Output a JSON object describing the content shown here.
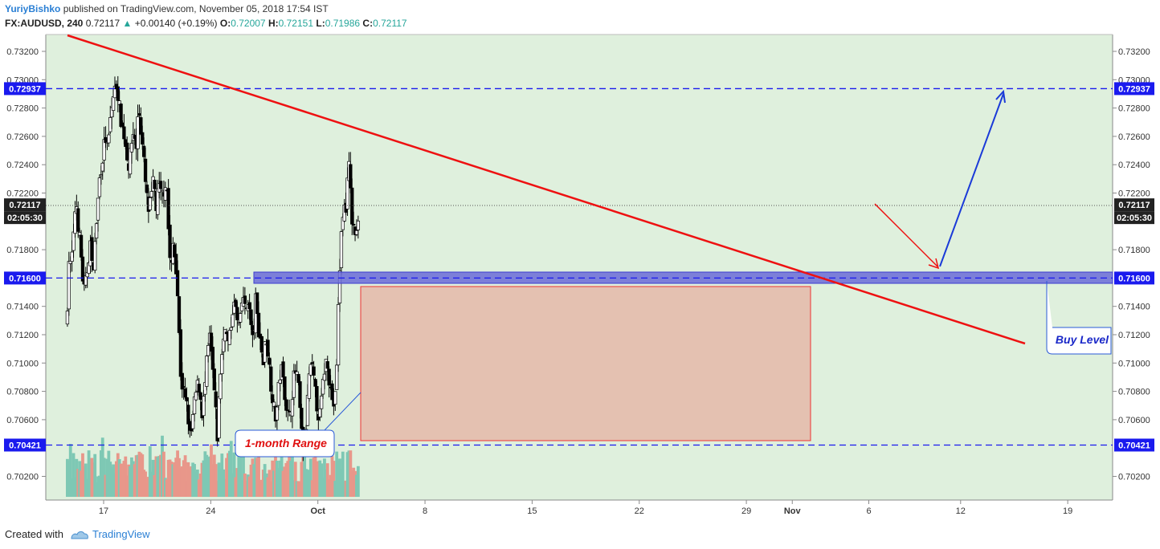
{
  "header": {
    "author": "YuriyBishko",
    "published": "published on TradingView.com, November 05, 2018 17:54 IST",
    "symbol": "FX:AUDUSD, 240",
    "last": "0.72117",
    "change_arrow": "▲",
    "change": "+0.00140 (+0.19%)",
    "o_label": "O:",
    "o_val": "0.72007",
    "h_label": "H:",
    "h_val": "0.72151",
    "l_label": "L:",
    "l_val": "0.71986",
    "c_label": "C:",
    "c_val": "0.72117"
  },
  "footer": {
    "created_with": "Created with",
    "brand": "TradingView"
  },
  "colors": {
    "background": "#dff0dd",
    "up_candle": "#ffffff",
    "down_candle": "#000000",
    "trendline": "#ee1111",
    "level_line": "#1a1aee",
    "buy_zone": "#6b6bd8",
    "range_fill": "#e5b9a9",
    "range_border": "#ee3333",
    "vol_up": "#7ec8b4",
    "vol_down": "#e8978a"
  },
  "chart_data": {
    "type": "candlestick",
    "symbol": "FX:AUDUSD",
    "interval": "240",
    "ylim": [
      0.7005,
      0.7328
    ],
    "y_ticks": [
      "0.73200",
      "0.73000",
      "0.72800",
      "0.72600",
      "0.72400",
      "0.72200",
      "0.71800",
      "0.71400",
      "0.71200",
      "0.71000",
      "0.70800",
      "0.70600",
      "0.70200"
    ],
    "x_ticks": [
      "17",
      "24",
      "Oct",
      "8",
      "15",
      "22",
      "29",
      "Nov",
      "6",
      "12",
      "19"
    ],
    "x_tick_day": [
      17,
      24,
      31,
      38,
      45,
      52,
      59,
      62,
      67,
      73,
      80
    ],
    "current_price": "0.72117",
    "countdown": "02:05:30",
    "levels": [
      {
        "label": "0.72937",
        "value": 0.72937
      },
      {
        "label": "0.71600",
        "value": 0.716
      },
      {
        "label": "0.70421",
        "value": 0.70421
      }
    ],
    "close_path": [
      [
        10.0,
        0.7125
      ],
      [
        10.6,
        0.7175
      ],
      [
        11.5,
        0.7168
      ],
      [
        12.5,
        0.7185
      ],
      [
        13.5,
        0.7218
      ],
      [
        14.5,
        0.7195
      ],
      [
        15.3,
        0.7184
      ],
      [
        16.0,
        0.7162
      ],
      [
        16.8,
        0.7152
      ],
      [
        17.5,
        0.7158
      ],
      [
        18.3,
        0.717
      ],
      [
        19.2,
        0.7185
      ],
      [
        20.0,
        0.7163
      ],
      [
        20.8,
        0.7178
      ],
      [
        21.8,
        0.7205
      ],
      [
        22.8,
        0.723
      ],
      [
        24.0,
        0.7245
      ],
      [
        25.0,
        0.726
      ],
      [
        26.0,
        0.725
      ],
      [
        27.0,
        0.7272
      ],
      [
        28.3,
        0.729
      ],
      [
        29.5,
        0.7297
      ],
      [
        30.3,
        0.7285
      ],
      [
        31.3,
        0.727
      ],
      [
        32.3,
        0.7262
      ],
      [
        33.5,
        0.7248
      ],
      [
        34.3,
        0.7238
      ],
      [
        35.3,
        0.7255
      ],
      [
        36.3,
        0.7265
      ],
      [
        37.3,
        0.7248
      ],
      [
        38.0,
        0.7285
      ],
      [
        38.7,
        0.727
      ],
      [
        39.5,
        0.7255
      ],
      [
        40.3,
        0.724
      ],
      [
        41.0,
        0.7222
      ],
      [
        42.0,
        0.7208
      ],
      [
        43.0,
        0.7215
      ],
      [
        44.0,
        0.723
      ],
      [
        45.0,
        0.721
      ],
      [
        46.0,
        0.7225
      ],
      [
        47.0,
        0.7218
      ],
      [
        48.0,
        0.7222
      ],
      [
        49.0,
        0.723
      ],
      [
        49.6,
        0.7205
      ],
      [
        50.2,
        0.7175
      ],
      [
        51.0,
        0.7168
      ],
      [
        51.6,
        0.7184
      ],
      [
        52.3,
        0.7175
      ],
      [
        53.0,
        0.7165
      ],
      [
        53.6,
        0.714
      ],
      [
        54.0,
        0.712
      ],
      [
        54.5,
        0.7095
      ],
      [
        55.0,
        0.7085
      ],
      [
        55.6,
        0.7082
      ],
      [
        56.2,
        0.7075
      ],
      [
        57.0,
        0.707
      ],
      [
        57.6,
        0.706
      ],
      [
        58.4,
        0.7045
      ],
      [
        59.3,
        0.706
      ],
      [
        60.2,
        0.7075
      ],
      [
        61.3,
        0.7085
      ],
      [
        62.0,
        0.7082
      ],
      [
        63.0,
        0.7065
      ],
      [
        64.0,
        0.708
      ],
      [
        65.0,
        0.7105
      ],
      [
        66.0,
        0.7118
      ],
      [
        67.0,
        0.7098
      ],
      [
        68.0,
        0.7075
      ],
      [
        69.0,
        0.7048
      ],
      [
        70.0,
        0.709
      ],
      [
        71.0,
        0.711
      ],
      [
        72.0,
        0.7128
      ],
      [
        73.0,
        0.7113
      ],
      [
        74.0,
        0.712
      ],
      [
        75.0,
        0.7138
      ],
      [
        76.0,
        0.7142
      ],
      [
        77.0,
        0.7125
      ],
      [
        78.0,
        0.713
      ],
      [
        79.0,
        0.715
      ],
      [
        80.0,
        0.7135
      ],
      [
        81.0,
        0.7145
      ],
      [
        82.0,
        0.713
      ],
      [
        83.0,
        0.7113
      ],
      [
        84.0,
        0.7145
      ],
      [
        85.0,
        0.7125
      ],
      [
        86.0,
        0.7115
      ],
      [
        87.0,
        0.71
      ],
      [
        88.0,
        0.712
      ],
      [
        89.0,
        0.7105
      ],
      [
        90.0,
        0.7085
      ],
      [
        91.0,
        0.707
      ],
      [
        92.0,
        0.706
      ],
      [
        93.0,
        0.7082
      ],
      [
        94.0,
        0.7098
      ],
      [
        95.0,
        0.7085
      ],
      [
        96.0,
        0.707
      ],
      [
        97.0,
        0.706
      ],
      [
        98.0,
        0.7072
      ],
      [
        99.0,
        0.709
      ],
      [
        100.0,
        0.7095
      ],
      [
        101.0,
        0.7078
      ],
      [
        102.0,
        0.705
      ],
      [
        103.0,
        0.703
      ],
      [
        104.0,
        0.7062
      ],
      [
        105.0,
        0.7092
      ],
      [
        106.0,
        0.7098
      ],
      [
        107.0,
        0.7085
      ],
      [
        108.0,
        0.707
      ],
      [
        109.0,
        0.706
      ],
      [
        110.0,
        0.7078
      ],
      [
        111.0,
        0.7095
      ],
      [
        112.0,
        0.7105
      ],
      [
        113.0,
        0.7085
      ],
      [
        114.0,
        0.7075
      ],
      [
        115.0,
        0.7068
      ],
      [
        115.8,
        0.71
      ],
      [
        116.5,
        0.7145
      ],
      [
        117.3,
        0.718
      ],
      [
        118.0,
        0.7205
      ],
      [
        118.8,
        0.721
      ],
      [
        119.5,
        0.7205
      ],
      [
        120.0,
        0.7235
      ],
      [
        120.8,
        0.724
      ],
      [
        121.5,
        0.7205
      ],
      [
        122.2,
        0.7195
      ],
      [
        123.0,
        0.7192
      ],
      [
        123.8,
        0.719
      ],
      [
        124.5,
        0.7212
      ]
    ]
  },
  "annotations": {
    "range_label": "1-month Range",
    "buy_label": "Buy Level"
  }
}
